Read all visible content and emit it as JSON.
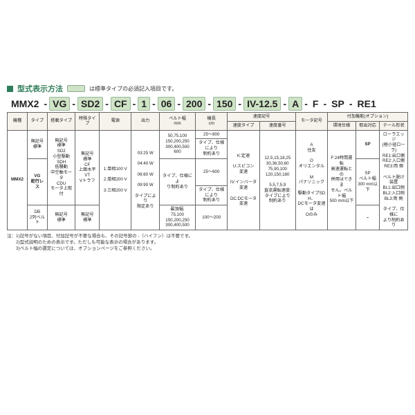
{
  "title": "型式表示方法",
  "chip_note": "は標準タイプの必須記入項目です。",
  "code": {
    "base": "MMX2",
    "segs": [
      "VG",
      "SD2",
      "CF",
      "1",
      "06",
      "200",
      "150",
      "IV-12.5",
      "A",
      "F",
      "SP",
      "RE1"
    ]
  },
  "head": {
    "row1": [
      "機種",
      "タイプ",
      "搭載タイプ",
      "特殊タイプ",
      "電源",
      "出力",
      "ベルト幅\nmm",
      "機長\ncm",
      "速度記号",
      "",
      "",
      "モータ記号",
      "付加機能(オプション)",
      "",
      ""
    ],
    "row2_speed": [
      "速度タイプ",
      "速度番号"
    ],
    "row2_opt": [
      "環境仕様",
      "取出対応",
      "テール形状"
    ]
  },
  "body": {
    "r1": {
      "kishu": "MMX2",
      "type1": "無記号\n標準",
      "mount1": "無記号\n標準\nSD2\n小型駆動\nSDH\n低騒動\n中空軸モータ\nCDU\nモータ上取付",
      "special1": "無記号\n標準\nCF\n上面水平\nVT\nVトラフ",
      "power": "1:単相100 V\n\n2:単相200 V\n\n3:三相200 V",
      "out1": "03:25 W\n\n04:40 W\n\n06:60 W\n\n09:90 W\n\nタイプにより\n限定あり",
      "belt1": "50,75,100\n150,200,250\n300,400,500\n600",
      "len_a": "25〜800",
      "len_a_note": "タイプ、仕様\nにより\n制約あり",
      "len_b": "25〜600",
      "len_b_note": "タイプ、仕様\nにより\n制約あり",
      "speed_type": "K:定速\n\nU:スピコン\n変速\n\nIV:インバータ\n変速\n\nDC:DCモータ\n変速",
      "speed_no": "12.5,15,18,25\n30,36,50,60\n75,90,100\n120,150,180\n\n5,5,7,5,9\n直流運転速度:\nタイプにより\n制約あり",
      "motor": "A\n住友\n\nO\nオリエンタル\n\nM\nパナソニック\n\n駆動タイプSDH、\nDCモータ変速は\nOのみ",
      "env": "F:24時間運転\n高速運転との\n併用はできま\nせん。ベルト幅\n500 mm以下",
      "tori1": "SP",
      "tori2": "SP\nベルト幅\n300 mm以下",
      "tail": "ローラエッジ\n(極小径ローラ)\nRE1:出口側\nRE2:入口側\nRE3:両 側\n\nベルト脱け装置\nBL1:出口側\nBL2:入口側\nBL3:両 側\n\nタイプ、仕様に\nより制約あり"
    },
    "r2": {
      "type2": "VG\n蛇行レス",
      "belt2": "タイプ、仕様によ\nり制約あり"
    },
    "r3": {
      "type3": "DB\n2列ベルト",
      "mount3": "無記号\n標準",
      "special3": "無記号\n標準",
      "belt3": "最頂幅:\n75,100\n150,200,250\n300,400,500",
      "len3": "100〜200",
      "dash": "–"
    }
  },
  "notes": [
    "注：1)記号がない項目、付加記号が不要な場合も、その記号部の -（ハイフン）は不要です。",
    "　　2)型式説明のための表示です。ただしも可能な表示の場合があります。",
    "　　3)ベルト幅の選定については、オプションページをご参照ください。"
  ]
}
